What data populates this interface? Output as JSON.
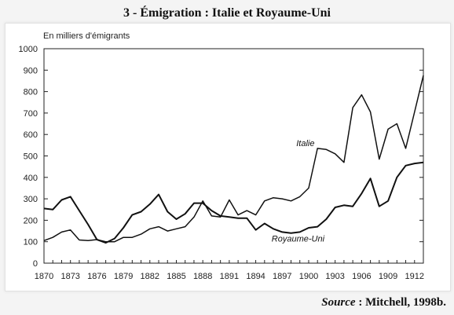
{
  "chart_data": {
    "type": "line",
    "title": "3 - Émigration : Italie et Royaume-Uni",
    "ylabel": "En milliers d'émigrants",
    "xlabel": "",
    "ylim": [
      0,
      1000
    ],
    "xlim": [
      1870,
      1913
    ],
    "yticks": [
      0,
      100,
      200,
      300,
      400,
      500,
      600,
      700,
      800,
      900,
      1000
    ],
    "xticks": [
      1870,
      1873,
      1876,
      1879,
      1882,
      1885,
      1888,
      1891,
      1894,
      1897,
      1900,
      1903,
      1906,
      1909,
      1912
    ],
    "grid": false,
    "colors": {
      "line": "#111111",
      "axis": "#222222",
      "background": "#ffffff"
    },
    "x": [
      1870,
      1871,
      1872,
      1873,
      1874,
      1875,
      1876,
      1877,
      1878,
      1879,
      1880,
      1881,
      1882,
      1883,
      1884,
      1885,
      1886,
      1887,
      1888,
      1889,
      1890,
      1891,
      1892,
      1893,
      1894,
      1895,
      1896,
      1897,
      1898,
      1899,
      1900,
      1901,
      1902,
      1903,
      1904,
      1905,
      1906,
      1907,
      1908,
      1909,
      1910,
      1911,
      1912,
      1913
    ],
    "series": [
      {
        "name": "Italie",
        "values": [
          105,
          120,
          145,
          155,
          108,
          105,
          110,
          100,
          100,
          120,
          120,
          135,
          160,
          170,
          150,
          160,
          170,
          215,
          290,
          220,
          215,
          295,
          225,
          245,
          225,
          290,
          305,
          300,
          290,
          310,
          350,
          535,
          530,
          510,
          470,
          725,
          785,
          705,
          485,
          625,
          650,
          535,
          705,
          875
        ]
      },
      {
        "name": "Royaume-Uni",
        "values": [
          255,
          250,
          295,
          310,
          245,
          180,
          110,
          95,
          115,
          165,
          225,
          240,
          275,
          320,
          240,
          205,
          230,
          280,
          280,
          245,
          220,
          215,
          210,
          210,
          155,
          185,
          160,
          145,
          140,
          145,
          165,
          170,
          205,
          260,
          270,
          265,
          325,
          395,
          265,
          290,
          400,
          455,
          465,
          470
        ]
      }
    ]
  },
  "source": {
    "label": "Source",
    "separator": " : ",
    "text": "Mitchell, 1998b."
  }
}
